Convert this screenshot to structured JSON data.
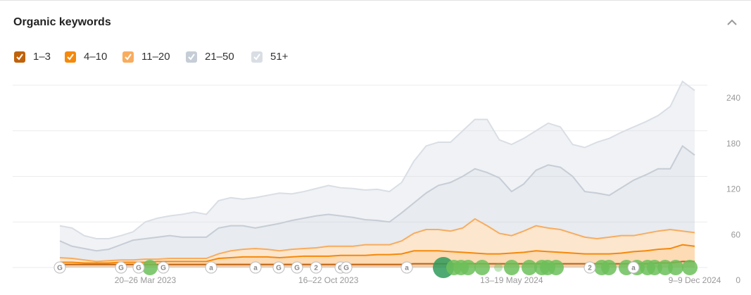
{
  "chart_data": {
    "type": "stacked_area",
    "title": "Organic keywords",
    "categories": [
      null,
      null,
      null,
      null,
      null,
      null,
      null,
      "20–26 Mar 2023",
      null,
      null,
      null,
      null,
      null,
      null,
      null,
      null,
      null,
      null,
      null,
      null,
      null,
      null,
      "16–22 Oct 2023",
      null,
      null,
      null,
      null,
      null,
      null,
      null,
      null,
      null,
      null,
      null,
      null,
      null,
      null,
      "13–19 May 2024",
      null,
      null,
      null,
      null,
      null,
      null,
      null,
      null,
      null,
      null,
      null,
      null,
      null,
      null,
      "9–9 Dec 2024"
    ],
    "series": [
      {
        "name": "1–3",
        "color": "#c0620c",
        "values": [
          4,
          4,
          4,
          4,
          4,
          4,
          4,
          4,
          4,
          4,
          4,
          4,
          4,
          4,
          4,
          4,
          4,
          4,
          4,
          4,
          4,
          4,
          4,
          4,
          4,
          4,
          4,
          4,
          4,
          5,
          5,
          5,
          5,
          5,
          5,
          5,
          5,
          5,
          5,
          5,
          5,
          5,
          5,
          5,
          5,
          5,
          5,
          5,
          5,
          6,
          6,
          8,
          8
        ]
      },
      {
        "name": "4–10",
        "color": "#f5890a",
        "values": [
          3,
          3,
          2,
          2,
          2,
          3,
          3,
          3,
          4,
          4,
          4,
          4,
          4,
          8,
          9,
          10,
          10,
          10,
          9,
          10,
          11,
          11,
          11,
          12,
          12,
          12,
          13,
          13,
          14,
          17,
          17,
          17,
          16,
          15,
          14,
          13,
          13,
          14,
          15,
          17,
          16,
          15,
          14,
          13,
          13,
          13,
          14,
          16,
          17,
          18,
          19,
          22,
          20
        ]
      },
      {
        "name": "11–20",
        "color": "#f8ac5e",
        "values": [
          6,
          5,
          4,
          2,
          3,
          3,
          3,
          4,
          3,
          4,
          4,
          4,
          4,
          6,
          9,
          10,
          11,
          10,
          9,
          10,
          10,
          11,
          13,
          12,
          12,
          14,
          13,
          13,
          17,
          23,
          28,
          28,
          27,
          32,
          45,
          37,
          27,
          23,
          28,
          33,
          31,
          30,
          26,
          22,
          20,
          22,
          23,
          21,
          23,
          24,
          25,
          18,
          18
        ]
      },
      {
        "name": "21–50",
        "color": "#c6cdd6",
        "values": [
          22,
          16,
          15,
          14,
          15,
          20,
          26,
          27,
          29,
          30,
          28,
          28,
          28,
          34,
          33,
          31,
          27,
          31,
          36,
          38,
          40,
          42,
          42,
          40,
          38,
          33,
          32,
          30,
          37,
          40,
          48,
          58,
          64,
          68,
          66,
          70,
          73,
          58,
          62,
          73,
          83,
          82,
          75,
          60,
          60,
          55,
          63,
          73,
          77,
          82,
          80,
          112,
          102
        ]
      },
      {
        "name": "51+",
        "color": "#d9dee5",
        "values": [
          20,
          24,
          17,
          16,
          14,
          12,
          11,
          22,
          25,
          26,
          30,
          33,
          30,
          36,
          37,
          35,
          40,
          40,
          40,
          35,
          35,
          36,
          38,
          37,
          38,
          39,
          41,
          40,
          40,
          55,
          62,
          57,
          53,
          60,
          65,
          70,
          50,
          62,
          60,
          52,
          55,
          53,
          42,
          58,
          67,
          75,
          73,
          70,
          70,
          70,
          82,
          85,
          85
        ]
      }
    ],
    "ylim": [
      0,
      240
    ],
    "yticks": [
      0,
      60,
      120,
      180,
      240
    ],
    "grid": true,
    "annotations": [
      "G",
      "G",
      "G",
      "G",
      "a",
      "a",
      "G",
      "G",
      "2",
      "G",
      "G",
      "a",
      "2",
      "a"
    ]
  }
}
